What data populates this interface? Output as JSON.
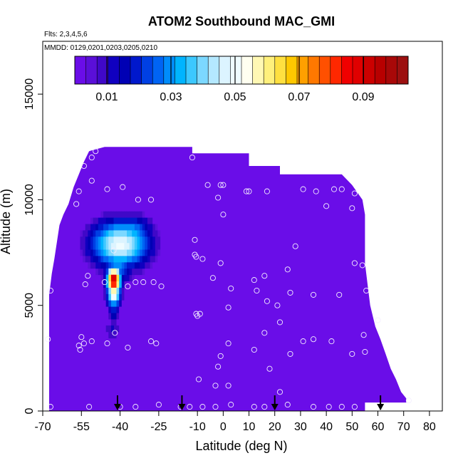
{
  "chart_data": {
    "type": "heatmap",
    "title": "ATOM2 Southbound MAC_GMI",
    "annotation_flights": "Flts: 2,3,4,5,6",
    "annotation_dates": "MMDD: 0129,0201,0203,0205,0210",
    "xlabel": "Latitude (deg N)",
    "ylabel": "Altitude (m)",
    "xlim": [
      -70,
      85
    ],
    "ylim": [
      0,
      17500
    ],
    "xticks": [
      -70,
      -55,
      -40,
      -25,
      -10,
      0,
      10,
      20,
      30,
      40,
      50,
      60,
      70,
      80
    ],
    "xtick_labels": [
      "-70",
      "-55",
      "-40",
      "-25",
      "-10",
      "0",
      "10",
      "20",
      "30",
      "40",
      "50",
      "60",
      "70",
      "80"
    ],
    "yticks": [
      0,
      5000,
      10000,
      15000
    ],
    "ytick_labels": [
      "0",
      "5000",
      "10000",
      "15000"
    ],
    "colorbar": {
      "range": [
        0,
        0.104
      ],
      "ticks": [
        0.01,
        0.03,
        0.05,
        0.07,
        0.09
      ],
      "tick_labels": [
        "0.01",
        "0.03",
        "0.05",
        "0.07",
        "0.09"
      ],
      "colors": [
        "#6a0de8",
        "#5a0fd8",
        "#4008c8",
        "#1000c0",
        "#0000b4",
        "#0018cc",
        "#0040e4",
        "#0064f4",
        "#008cfc",
        "#00b4ff",
        "#3cc8ff",
        "#7cd8ff",
        "#b4e8ff",
        "#dcf4ff",
        "#f0fcff",
        "#fffff0",
        "#fff8b4",
        "#fff07c",
        "#ffe040",
        "#ffc800",
        "#ffa000",
        "#ff7800",
        "#ff5000",
        "#ff2800",
        "#f00000",
        "#e00000",
        "#cc0000",
        "#b80000",
        "#a80808",
        "#9c1010"
      ]
    },
    "background_value": 0.002,
    "domain_envelope": [
      [
        -67.5,
        0
      ],
      [
        -67.5,
        5500
      ],
      [
        -66.5,
        6500
      ],
      [
        -65.5,
        7200
      ],
      [
        -64.5,
        8000
      ],
      [
        -63.5,
        8800
      ],
      [
        -62,
        9300
      ],
      [
        -60,
        9800
      ],
      [
        -58,
        10600
      ],
      [
        -56,
        11200
      ],
      [
        -54,
        11800
      ],
      [
        -52,
        12300
      ],
      [
        -46,
        12500
      ],
      [
        -12,
        12500
      ],
      [
        -12,
        12200
      ],
      [
        10,
        12200
      ],
      [
        10,
        11600
      ],
      [
        22,
        11600
      ],
      [
        22,
        11200
      ],
      [
        46,
        11200
      ],
      [
        50,
        10700
      ],
      [
        54,
        10000
      ],
      [
        55,
        9300
      ],
      [
        55,
        7000
      ],
      [
        56,
        6000
      ],
      [
        57,
        5000
      ],
      [
        59,
        4000
      ],
      [
        61,
        3400
      ],
      [
        63,
        2700
      ],
      [
        65,
        2000
      ],
      [
        67,
        1500
      ],
      [
        69,
        900
      ],
      [
        71,
        600
      ],
      [
        71,
        400
      ],
      [
        55,
        400
      ],
      [
        55,
        0
      ]
    ],
    "plumes": [
      {
        "lat": -40,
        "alt": 7900,
        "lat_width": 11,
        "alt_width": 1100,
        "value": 0.05
      },
      {
        "lat": -36,
        "alt": 8300,
        "lat_width": 8,
        "alt_width": 900,
        "value": 0.035
      },
      {
        "lat": -41,
        "alt": 6900,
        "lat_width": 6,
        "alt_width": 800,
        "value": 0.03
      },
      {
        "lat": -42.5,
        "alt": 6200,
        "lat_width": 2.5,
        "alt_width": 600,
        "value": 0.095
      },
      {
        "lat": -42.5,
        "alt": 5600,
        "lat_width": 2.5,
        "alt_width": 600,
        "value": 0.06
      },
      {
        "lat": -42.5,
        "alt": 4800,
        "lat_width": 2,
        "alt_width": 700,
        "value": 0.02
      },
      {
        "lat": -43,
        "alt": 3800,
        "lat_width": 3.5,
        "alt_width": 300,
        "value": 0.012
      }
    ],
    "sample_points": [
      [
        -67,
        5700
      ],
      [
        -68,
        3400
      ],
      [
        -67,
        200
      ],
      [
        -57,
        9800
      ],
      [
        -54,
        11600
      ],
      [
        -51,
        12000
      ],
      [
        -49.5,
        12300
      ],
      [
        -56,
        10400
      ],
      [
        -51,
        10900
      ],
      [
        -45,
        10500
      ],
      [
        -39,
        10600
      ],
      [
        -33,
        10000
      ],
      [
        -28,
        10000
      ],
      [
        -52.5,
        6400
      ],
      [
        -53.5,
        6000
      ],
      [
        -46,
        6100
      ],
      [
        -42.5,
        7600
      ],
      [
        -37,
        5900
      ],
      [
        -34,
        6100
      ],
      [
        -31,
        6100
      ],
      [
        -27,
        6100
      ],
      [
        -24,
        5900
      ],
      [
        -55,
        3500
      ],
      [
        -54,
        3200
      ],
      [
        -56,
        3100
      ],
      [
        -55.5,
        2900
      ],
      [
        -51,
        3300
      ],
      [
        -45,
        3200
      ],
      [
        -42,
        3700
      ],
      [
        -37,
        3000
      ],
      [
        -28,
        3300
      ],
      [
        -26,
        3200
      ],
      [
        -52,
        200
      ],
      [
        -40,
        200
      ],
      [
        -34,
        200
      ],
      [
        -25,
        300
      ],
      [
        -16.5,
        200
      ],
      [
        -13,
        200
      ],
      [
        -12,
        12000
      ],
      [
        -6,
        10700
      ],
      [
        -11,
        8100
      ],
      [
        -11,
        7400
      ],
      [
        -8,
        7200
      ],
      [
        -10.5,
        7300
      ],
      [
        -9,
        4600
      ],
      [
        -10,
        4500
      ],
      [
        -10.5,
        4600
      ],
      [
        -9.5,
        1500
      ],
      [
        -1,
        10700
      ],
      [
        0,
        10700
      ],
      [
        -2,
        10100
      ],
      [
        0,
        9300
      ],
      [
        -1,
        7000
      ],
      [
        -4,
        6300
      ],
      [
        3,
        5800
      ],
      [
        2,
        4900
      ],
      [
        -1,
        2600
      ],
      [
        -2,
        2100
      ],
      [
        2,
        3200
      ],
      [
        -3,
        1200
      ],
      [
        2,
        1200
      ],
      [
        -8,
        200
      ],
      [
        -3,
        200
      ],
      [
        3,
        300
      ],
      [
        9,
        10400
      ],
      [
        10,
        10400
      ],
      [
        17,
        10400
      ],
      [
        12,
        6200
      ],
      [
        13,
        5700
      ],
      [
        16,
        6400
      ],
      [
        21,
        5000
      ],
      [
        17,
        5200
      ],
      [
        25,
        6700
      ],
      [
        28,
        7800
      ],
      [
        26,
        5600
      ],
      [
        12,
        2900
      ],
      [
        16,
        3700
      ],
      [
        18,
        2000
      ],
      [
        22,
        900
      ],
      [
        22,
        4200
      ],
      [
        26,
        2700
      ],
      [
        31,
        3300
      ],
      [
        35,
        3400
      ],
      [
        35,
        5500
      ],
      [
        42,
        3300
      ],
      [
        45,
        5500
      ],
      [
        40,
        9700
      ],
      [
        43,
        10500
      ],
      [
        46,
        10500
      ],
      [
        50,
        9600
      ],
      [
        51,
        10300
      ],
      [
        36,
        10400
      ],
      [
        31,
        10500
      ],
      [
        51,
        7000
      ],
      [
        54,
        6900
      ],
      [
        55.5,
        5700
      ],
      [
        54.5,
        3600
      ],
      [
        55,
        2800
      ],
      [
        50,
        2700
      ],
      [
        60,
        4300
      ],
      [
        12,
        200
      ],
      [
        16,
        200
      ],
      [
        25,
        300
      ],
      [
        35,
        200
      ],
      [
        41,
        200
      ],
      [
        46,
        200
      ],
      [
        51,
        200
      ],
      [
        72,
        500
      ]
    ],
    "flight_markers_lat": [
      -41,
      -16,
      20,
      61
    ]
  }
}
